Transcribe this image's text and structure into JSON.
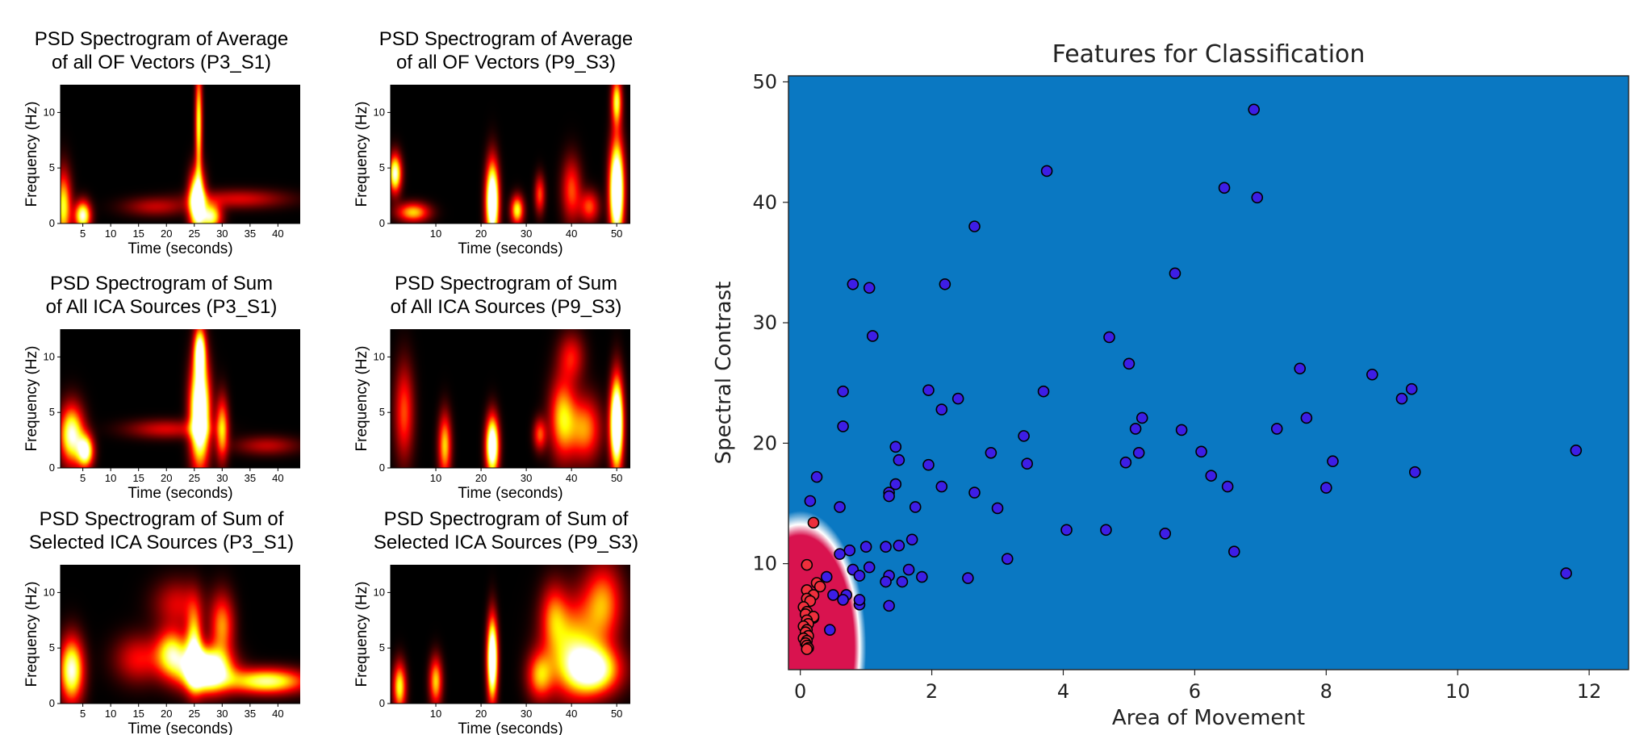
{
  "chart_data": [
    {
      "type": "heatmap",
      "title_line1": "PSD Spectrogram of Average",
      "title_line2": "of all OF Vectors (P3_S1)",
      "xlabel": "Time (seconds)",
      "ylabel": "Frequency (Hz)",
      "xlim": [
        1,
        44
      ],
      "ylim": [
        0,
        12.5
      ],
      "x_ticks": [
        5,
        10,
        15,
        20,
        25,
        30,
        35,
        40
      ],
      "y_ticks": [
        0,
        5,
        10
      ],
      "hotspots": [
        {
          "t": 25.5,
          "f": 2.0,
          "st": 1.0,
          "sf": 1.8,
          "a": 1.3
        },
        {
          "t": 25.8,
          "f": 9.0,
          "st": 0.45,
          "sf": 3.5,
          "a": 0.8
        },
        {
          "t": 28.0,
          "f": 0.6,
          "st": 1.3,
          "sf": 0.8,
          "a": 0.9
        },
        {
          "t": 5.0,
          "f": 0.7,
          "st": 1.0,
          "sf": 0.9,
          "a": 1.0
        },
        {
          "t": 1.5,
          "f": 1.5,
          "st": 1.0,
          "sf": 2.2,
          "a": 0.8
        },
        {
          "t": 33.0,
          "f": 2.2,
          "st": 6.0,
          "sf": 0.6,
          "a": 0.35
        },
        {
          "t": 18.0,
          "f": 1.5,
          "st": 4.0,
          "sf": 0.6,
          "a": 0.3
        }
      ]
    },
    {
      "type": "heatmap",
      "title_line1": "PSD Spectrogram of Average",
      "title_line2": "of all OF Vectors (P9_S3)",
      "xlabel": "Time (seconds)",
      "ylabel": "Frequency (Hz)",
      "xlim": [
        0,
        53
      ],
      "ylim": [
        0,
        12.5
      ],
      "x_ticks": [
        10,
        20,
        30,
        40,
        50
      ],
      "y_ticks": [
        0,
        5,
        10
      ],
      "hotspots": [
        {
          "t": 22.5,
          "f": 2.0,
          "st": 1.0,
          "sf": 2.4,
          "a": 1.4
        },
        {
          "t": 50.0,
          "f": 3.0,
          "st": 1.1,
          "sf": 3.0,
          "a": 1.5
        },
        {
          "t": 50.0,
          "f": 11.0,
          "st": 0.8,
          "sf": 1.5,
          "a": 0.8
        },
        {
          "t": 1.0,
          "f": 4.5,
          "st": 1.0,
          "sf": 1.2,
          "a": 1.0
        },
        {
          "t": 5.0,
          "f": 1.0,
          "st": 2.5,
          "sf": 0.6,
          "a": 0.7
        },
        {
          "t": 28.0,
          "f": 1.2,
          "st": 1.0,
          "sf": 0.9,
          "a": 0.8
        },
        {
          "t": 33.0,
          "f": 2.6,
          "st": 0.8,
          "sf": 1.2,
          "a": 0.5
        },
        {
          "t": 40.0,
          "f": 3.0,
          "st": 1.5,
          "sf": 2.0,
          "a": 0.5
        },
        {
          "t": 44.0,
          "f": 1.5,
          "st": 1.5,
          "sf": 1.0,
          "a": 0.5
        }
      ]
    },
    {
      "type": "heatmap",
      "title_line1": "PSD Spectrogram of Sum",
      "title_line2": "of All ICA Sources (P3_S1)",
      "xlabel": "Time (seconds)",
      "ylabel": "Frequency (Hz)",
      "xlim": [
        1,
        44
      ],
      "ylim": [
        0,
        12.5
      ],
      "x_ticks": [
        5,
        10,
        15,
        20,
        25,
        30,
        35,
        40
      ],
      "y_ticks": [
        0,
        5,
        10
      ],
      "hotspots": [
        {
          "t": 26.0,
          "f": 5.0,
          "st": 1.2,
          "sf": 3.2,
          "a": 1.5
        },
        {
          "t": 26.0,
          "f": 10.5,
          "st": 0.7,
          "sf": 1.5,
          "a": 1.0
        },
        {
          "t": 3.0,
          "f": 3.0,
          "st": 1.5,
          "sf": 1.8,
          "a": 1.0
        },
        {
          "t": 5.5,
          "f": 1.5,
          "st": 1.0,
          "sf": 1.0,
          "a": 1.0
        },
        {
          "t": 30.0,
          "f": 3.5,
          "st": 0.8,
          "sf": 2.0,
          "a": 0.7
        },
        {
          "t": 20.0,
          "f": 3.5,
          "st": 5.0,
          "sf": 0.6,
          "a": 0.35
        },
        {
          "t": 38.0,
          "f": 2.0,
          "st": 4.0,
          "sf": 0.6,
          "a": 0.3
        }
      ]
    },
    {
      "type": "heatmap",
      "title_line1": "PSD Spectrogram of Sum",
      "title_line2": "of All ICA Sources (P9_S3)",
      "xlabel": "Time (seconds)",
      "ylabel": "Frequency (Hz)",
      "xlim": [
        0,
        53
      ],
      "ylim": [
        0,
        12.5
      ],
      "x_ticks": [
        10,
        20,
        30,
        40,
        50
      ],
      "y_ticks": [
        0,
        5,
        10
      ],
      "hotspots": [
        {
          "t": 22.5,
          "f": 2.0,
          "st": 1.0,
          "sf": 1.8,
          "a": 1.3
        },
        {
          "t": 50.0,
          "f": 4.0,
          "st": 1.0,
          "sf": 2.8,
          "a": 1.5
        },
        {
          "t": 38.0,
          "f": 4.5,
          "st": 2.0,
          "sf": 2.5,
          "a": 0.7
        },
        {
          "t": 43.0,
          "f": 3.5,
          "st": 2.5,
          "sf": 2.0,
          "a": 0.6
        },
        {
          "t": 40.0,
          "f": 10.0,
          "st": 2.0,
          "sf": 1.5,
          "a": 0.4
        },
        {
          "t": 12.0,
          "f": 2.0,
          "st": 1.0,
          "sf": 2.0,
          "a": 0.7
        },
        {
          "t": 3.0,
          "f": 5.0,
          "st": 1.5,
          "sf": 3.0,
          "a": 0.5
        },
        {
          "t": 33.0,
          "f": 3.0,
          "st": 1.0,
          "sf": 1.0,
          "a": 0.5
        }
      ]
    },
    {
      "type": "heatmap",
      "title_line1": "PSD Spectrogram of Sum of",
      "title_line2": "Selected ICA Sources (P3_S1)",
      "xlabel": "Time (seconds)",
      "ylabel": "Frequency (Hz)",
      "xlim": [
        1,
        44
      ],
      "ylim": [
        0,
        12.5
      ],
      "x_ticks": [
        5,
        10,
        15,
        20,
        25,
        30,
        35,
        40
      ],
      "y_ticks": [
        0,
        5,
        10
      ],
      "hotspots": [
        {
          "t": 27.0,
          "f": 3.0,
          "st": 3.0,
          "sf": 1.3,
          "a": 1.5
        },
        {
          "t": 25.0,
          "f": 5.0,
          "st": 1.0,
          "sf": 2.5,
          "a": 0.8
        },
        {
          "t": 21.0,
          "f": 4.5,
          "st": 2.0,
          "sf": 1.5,
          "a": 0.8
        },
        {
          "t": 38.0,
          "f": 2.0,
          "st": 5.0,
          "sf": 0.8,
          "a": 0.9
        },
        {
          "t": 3.0,
          "f": 3.0,
          "st": 1.5,
          "sf": 2.0,
          "a": 1.0
        },
        {
          "t": 30.0,
          "f": 7.0,
          "st": 1.5,
          "sf": 2.0,
          "a": 0.6
        },
        {
          "t": 15.0,
          "f": 4.0,
          "st": 3.0,
          "sf": 1.5,
          "a": 0.4
        },
        {
          "t": 22.0,
          "f": 9.0,
          "st": 3.0,
          "sf": 1.5,
          "a": 0.35
        }
      ]
    },
    {
      "type": "heatmap",
      "title_line1": "PSD Spectrogram of Sum of",
      "title_line2": "Selected ICA Sources (P9_S3)",
      "xlabel": "Time (seconds)",
      "ylabel": "Frequency (Hz)",
      "xlim": [
        0,
        53
      ],
      "ylim": [
        0,
        12.5
      ],
      "x_ticks": [
        10,
        20,
        30,
        40,
        50
      ],
      "y_ticks": [
        0,
        5,
        10
      ],
      "hotspots": [
        {
          "t": 22.5,
          "f": 4.0,
          "st": 0.8,
          "sf": 2.5,
          "a": 1.4
        },
        {
          "t": 45.0,
          "f": 3.0,
          "st": 4.0,
          "sf": 1.5,
          "a": 1.0
        },
        {
          "t": 40.0,
          "f": 5.0,
          "st": 4.0,
          "sf": 3.0,
          "a": 0.7
        },
        {
          "t": 47.0,
          "f": 9.0,
          "st": 3.0,
          "sf": 2.5,
          "a": 0.6
        },
        {
          "t": 10.0,
          "f": 2.0,
          "st": 1.0,
          "sf": 1.5,
          "a": 0.7
        },
        {
          "t": 33.0,
          "f": 2.5,
          "st": 2.0,
          "sf": 1.5,
          "a": 0.6
        },
        {
          "t": 2.0,
          "f": 1.5,
          "st": 1.0,
          "sf": 1.5,
          "a": 0.8
        },
        {
          "t": 36.0,
          "f": 8.0,
          "st": 2.0,
          "sf": 2.0,
          "a": 0.4
        }
      ]
    },
    {
      "type": "scatter",
      "title": "Features for Classification",
      "xlabel": "Area of Movement",
      "ylabel": "Spectral Contrast",
      "xlim": [
        -0.18,
        12.6
      ],
      "ylim": [
        1.2,
        50.5
      ],
      "x_ticks": [
        0,
        2,
        4,
        6,
        8,
        10,
        12
      ],
      "y_ticks": [
        10,
        20,
        30,
        40,
        50
      ],
      "background_color": "#0a78c2",
      "region_color": "#d9134f",
      "series": [
        {
          "color": "#3d1ee6",
          "points": [
            [
              6.9,
              47.7
            ],
            [
              3.75,
              42.6
            ],
            [
              6.45,
              41.2
            ],
            [
              6.95,
              40.4
            ],
            [
              2.65,
              38.0
            ],
            [
              5.7,
              34.1
            ],
            [
              0.8,
              33.2
            ],
            [
              2.2,
              33.2
            ],
            [
              1.05,
              32.9
            ],
            [
              1.1,
              28.9
            ],
            [
              4.7,
              28.8
            ],
            [
              5.0,
              26.6
            ],
            [
              7.6,
              26.2
            ],
            [
              8.7,
              25.7
            ],
            [
              9.3,
              24.5
            ],
            [
              0.65,
              24.3
            ],
            [
              1.95,
              24.4
            ],
            [
              3.7,
              24.3
            ],
            [
              9.15,
              23.7
            ],
            [
              2.4,
              23.7
            ],
            [
              2.15,
              22.8
            ],
            [
              5.2,
              22.1
            ],
            [
              7.7,
              22.1
            ],
            [
              0.65,
              21.4
            ],
            [
              5.1,
              21.2
            ],
            [
              5.8,
              21.1
            ],
            [
              7.25,
              21.2
            ],
            [
              3.4,
              20.6
            ],
            [
              1.45,
              19.7
            ],
            [
              2.9,
              19.2
            ],
            [
              6.1,
              19.3
            ],
            [
              5.15,
              19.2
            ],
            [
              11.8,
              19.4
            ],
            [
              1.5,
              18.6
            ],
            [
              1.95,
              18.2
            ],
            [
              3.45,
              18.3
            ],
            [
              4.95,
              18.4
            ],
            [
              8.1,
              18.5
            ],
            [
              6.25,
              17.3
            ],
            [
              9.35,
              17.6
            ],
            [
              0.25,
              17.2
            ],
            [
              1.45,
              16.6
            ],
            [
              2.15,
              16.4
            ],
            [
              6.5,
              16.4
            ],
            [
              8.0,
              16.3
            ],
            [
              1.35,
              15.9
            ],
            [
              2.65,
              15.9
            ],
            [
              1.35,
              15.6
            ],
            [
              0.15,
              15.2
            ],
            [
              0.6,
              14.7
            ],
            [
              1.75,
              14.7
            ],
            [
              3.0,
              14.6
            ],
            [
              4.05,
              12.8
            ],
            [
              4.65,
              12.8
            ],
            [
              5.55,
              12.5
            ],
            [
              1.7,
              12.0
            ],
            [
              1.0,
              11.4
            ],
            [
              1.3,
              11.4
            ],
            [
              1.5,
              11.5
            ],
            [
              0.75,
              11.1
            ],
            [
              0.6,
              10.8
            ],
            [
              6.6,
              11.0
            ],
            [
              3.15,
              10.4
            ],
            [
              1.05,
              9.7
            ],
            [
              0.8,
              9.5
            ],
            [
              1.65,
              9.5
            ],
            [
              0.9,
              9.0
            ],
            [
              1.35,
              9.0
            ],
            [
              1.85,
              8.9
            ],
            [
              2.55,
              8.8
            ],
            [
              11.65,
              9.2
            ],
            [
              1.3,
              8.5
            ],
            [
              1.55,
              8.5
            ],
            [
              0.4,
              8.9
            ],
            [
              0.7,
              7.4
            ],
            [
              0.5,
              7.4
            ],
            [
              0.9,
              6.6
            ],
            [
              0.9,
              7.0
            ],
            [
              0.65,
              7.0
            ],
            [
              1.35,
              6.5
            ],
            [
              0.45,
              4.5
            ],
            [
              0.2,
              5.5
            ]
          ]
        },
        {
          "color": "#ee2f3c",
          "points": [
            [
              0.2,
              13.4
            ],
            [
              0.1,
              9.9
            ],
            [
              0.25,
              8.4
            ],
            [
              0.3,
              8.1
            ],
            [
              0.1,
              7.8
            ],
            [
              0.2,
              7.4
            ],
            [
              0.1,
              7.1
            ],
            [
              0.15,
              6.9
            ],
            [
              0.05,
              6.4
            ],
            [
              0.1,
              6.0
            ],
            [
              0.08,
              5.8
            ],
            [
              0.2,
              5.6
            ],
            [
              0.1,
              5.3
            ],
            [
              0.12,
              5.0
            ],
            [
              0.05,
              4.8
            ],
            [
              0.1,
              4.5
            ],
            [
              0.08,
              4.3
            ],
            [
              0.12,
              4.0
            ],
            [
              0.05,
              3.8
            ],
            [
              0.1,
              3.6
            ],
            [
              0.08,
              3.4
            ],
            [
              0.1,
              3.2
            ],
            [
              0.12,
              3.0
            ],
            [
              0.1,
              2.9
            ]
          ]
        }
      ]
    }
  ]
}
